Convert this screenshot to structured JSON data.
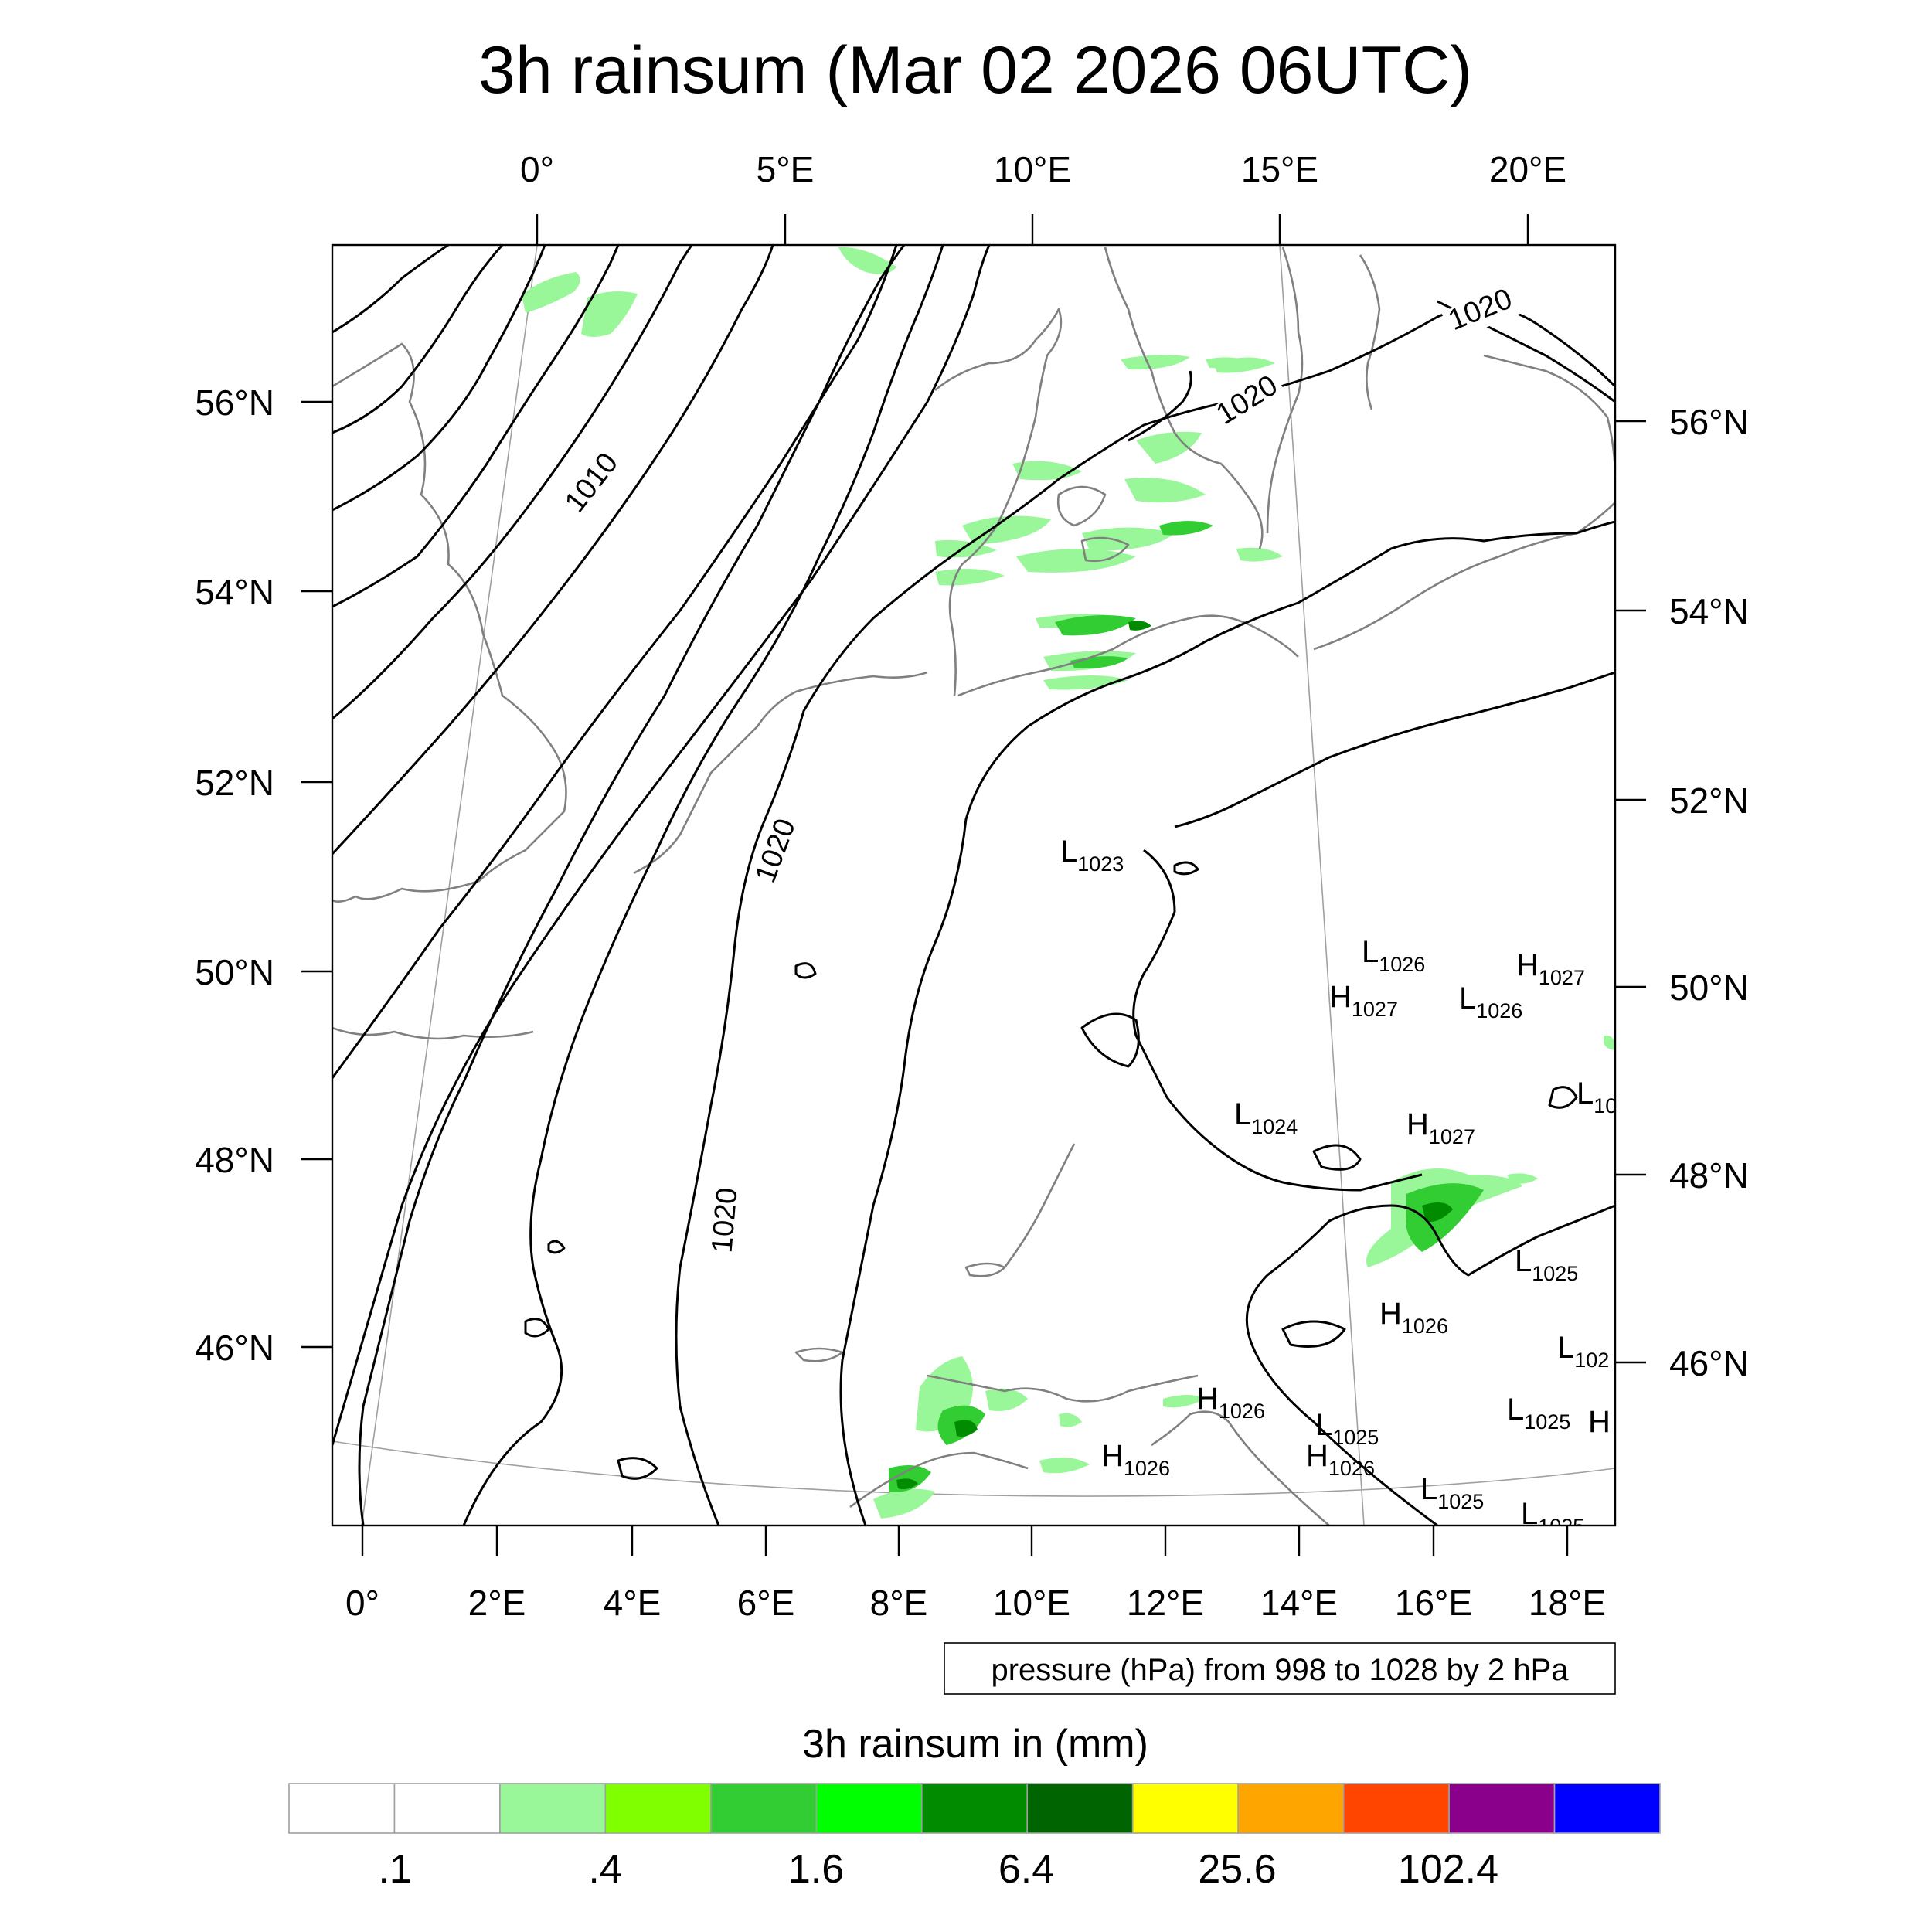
{
  "title": "3h rainsum (Mar 02 2026 06UTC)",
  "map": {
    "top_lon_labels": [
      "0°",
      "5°E",
      "10°E",
      "15°E",
      "20°E"
    ],
    "bottom_lon_labels": [
      "0°",
      "2°E",
      "4°E",
      "6°E",
      "8°E",
      "10°E",
      "12°E",
      "14°E",
      "16°E",
      "18°E"
    ],
    "left_lat_labels": [
      "56°N",
      "54°N",
      "52°N",
      "50°N",
      "48°N",
      "46°N"
    ],
    "right_lat_labels": [
      "56°N",
      "54°N",
      "52°N",
      "50°N",
      "48°N",
      "46°N"
    ],
    "contour_labels": [
      {
        "text": "1010"
      },
      {
        "text": "1020"
      },
      {
        "text": "1020"
      },
      {
        "text": "1020"
      },
      {
        "text": "1020"
      }
    ],
    "pressure_centers": [
      {
        "letter": "L",
        "value": "1023"
      },
      {
        "letter": "L",
        "value": "1026"
      },
      {
        "letter": "H",
        "value": "1027"
      },
      {
        "letter": "H",
        "value": "1027"
      },
      {
        "letter": "L",
        "value": "1026"
      },
      {
        "letter": "L",
        "value": "10"
      },
      {
        "letter": "L",
        "value": "1024"
      },
      {
        "letter": "H",
        "value": "1027"
      },
      {
        "letter": "L",
        "value": "1025"
      },
      {
        "letter": "H",
        "value": "1026"
      },
      {
        "letter": "L",
        "value": "102"
      },
      {
        "letter": "H",
        "value": "1026"
      },
      {
        "letter": "L",
        "value": "1025"
      },
      {
        "letter": "L",
        "value": "1025"
      },
      {
        "letter": "H",
        "value": ""
      },
      {
        "letter": "H",
        "value": "1026"
      },
      {
        "letter": "H",
        "value": "1026"
      },
      {
        "letter": "L",
        "value": "1025"
      },
      {
        "letter": "L",
        "value": "1025"
      }
    ],
    "colors": {
      "contour": "#000000",
      "coastline": "#808080",
      "graticule": "#a0a0a0"
    }
  },
  "note": "pressure (hPa) from 998 to 1028 by 2 hPa",
  "colorbar": {
    "title": "3h rainsum in (mm)",
    "colors": [
      "#ffffff",
      "#ffffff",
      "#99f799",
      "#7fff00",
      "#32cd32",
      "#00ff00",
      "#008b00",
      "#006400",
      "#ffff00",
      "#ffa500",
      "#ff4500",
      "#8b008b",
      "#0000ff"
    ],
    "labels": [
      ".1",
      ".4",
      "1.6",
      "6.4",
      "25.6",
      "102.4"
    ]
  }
}
